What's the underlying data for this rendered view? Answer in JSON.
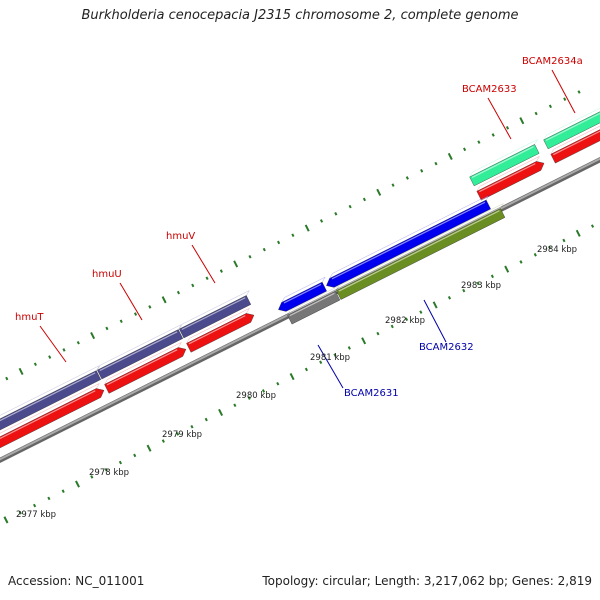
{
  "title": "Burkholderia cenocepacia J2315 chromosome 2, complete genome",
  "footer": {
    "accession": "Accession: NC_011001",
    "stats": "Topology: circular; Length: 3,217,062 bp; Genes: 2,819"
  },
  "scale_labels": [
    "2977 kbp",
    "2978 kbp",
    "2979 kbp",
    "2980 kbp",
    "2981 kbp",
    "2982 kbp",
    "2983 kbp",
    "2984 kbp"
  ],
  "genes": [
    {
      "label": "hmuT",
      "strand": "top",
      "color": "#4b4a8c",
      "label_color": "#cc0000"
    },
    {
      "label": "hmuU",
      "strand": "top",
      "color": "#4b4a8c",
      "label_color": "#cc0000"
    },
    {
      "label": "hmuV",
      "strand": "top",
      "color": "#4b4a8c",
      "label_color": "#cc0000"
    },
    {
      "label": "BCAM2631",
      "strand": "bottom",
      "color": "#0000ee",
      "label_color": "#0000aa"
    },
    {
      "label": "BCAM2632",
      "strand": "bottom",
      "color": "#6b8e23",
      "label_color": "#0000aa"
    },
    {
      "label": "BCAM2633",
      "strand": "top",
      "color": "#33ee99",
      "label_color": "#cc0000"
    },
    {
      "label": "BCAM2634a",
      "strand": "top",
      "color": "#33ee99",
      "label_color": "#cc0000"
    }
  ],
  "colors": {
    "cds_feature": "#ee1111",
    "genome_backbone": "#888888",
    "tick": "#2a7a2a",
    "pseudo": "#777777"
  }
}
